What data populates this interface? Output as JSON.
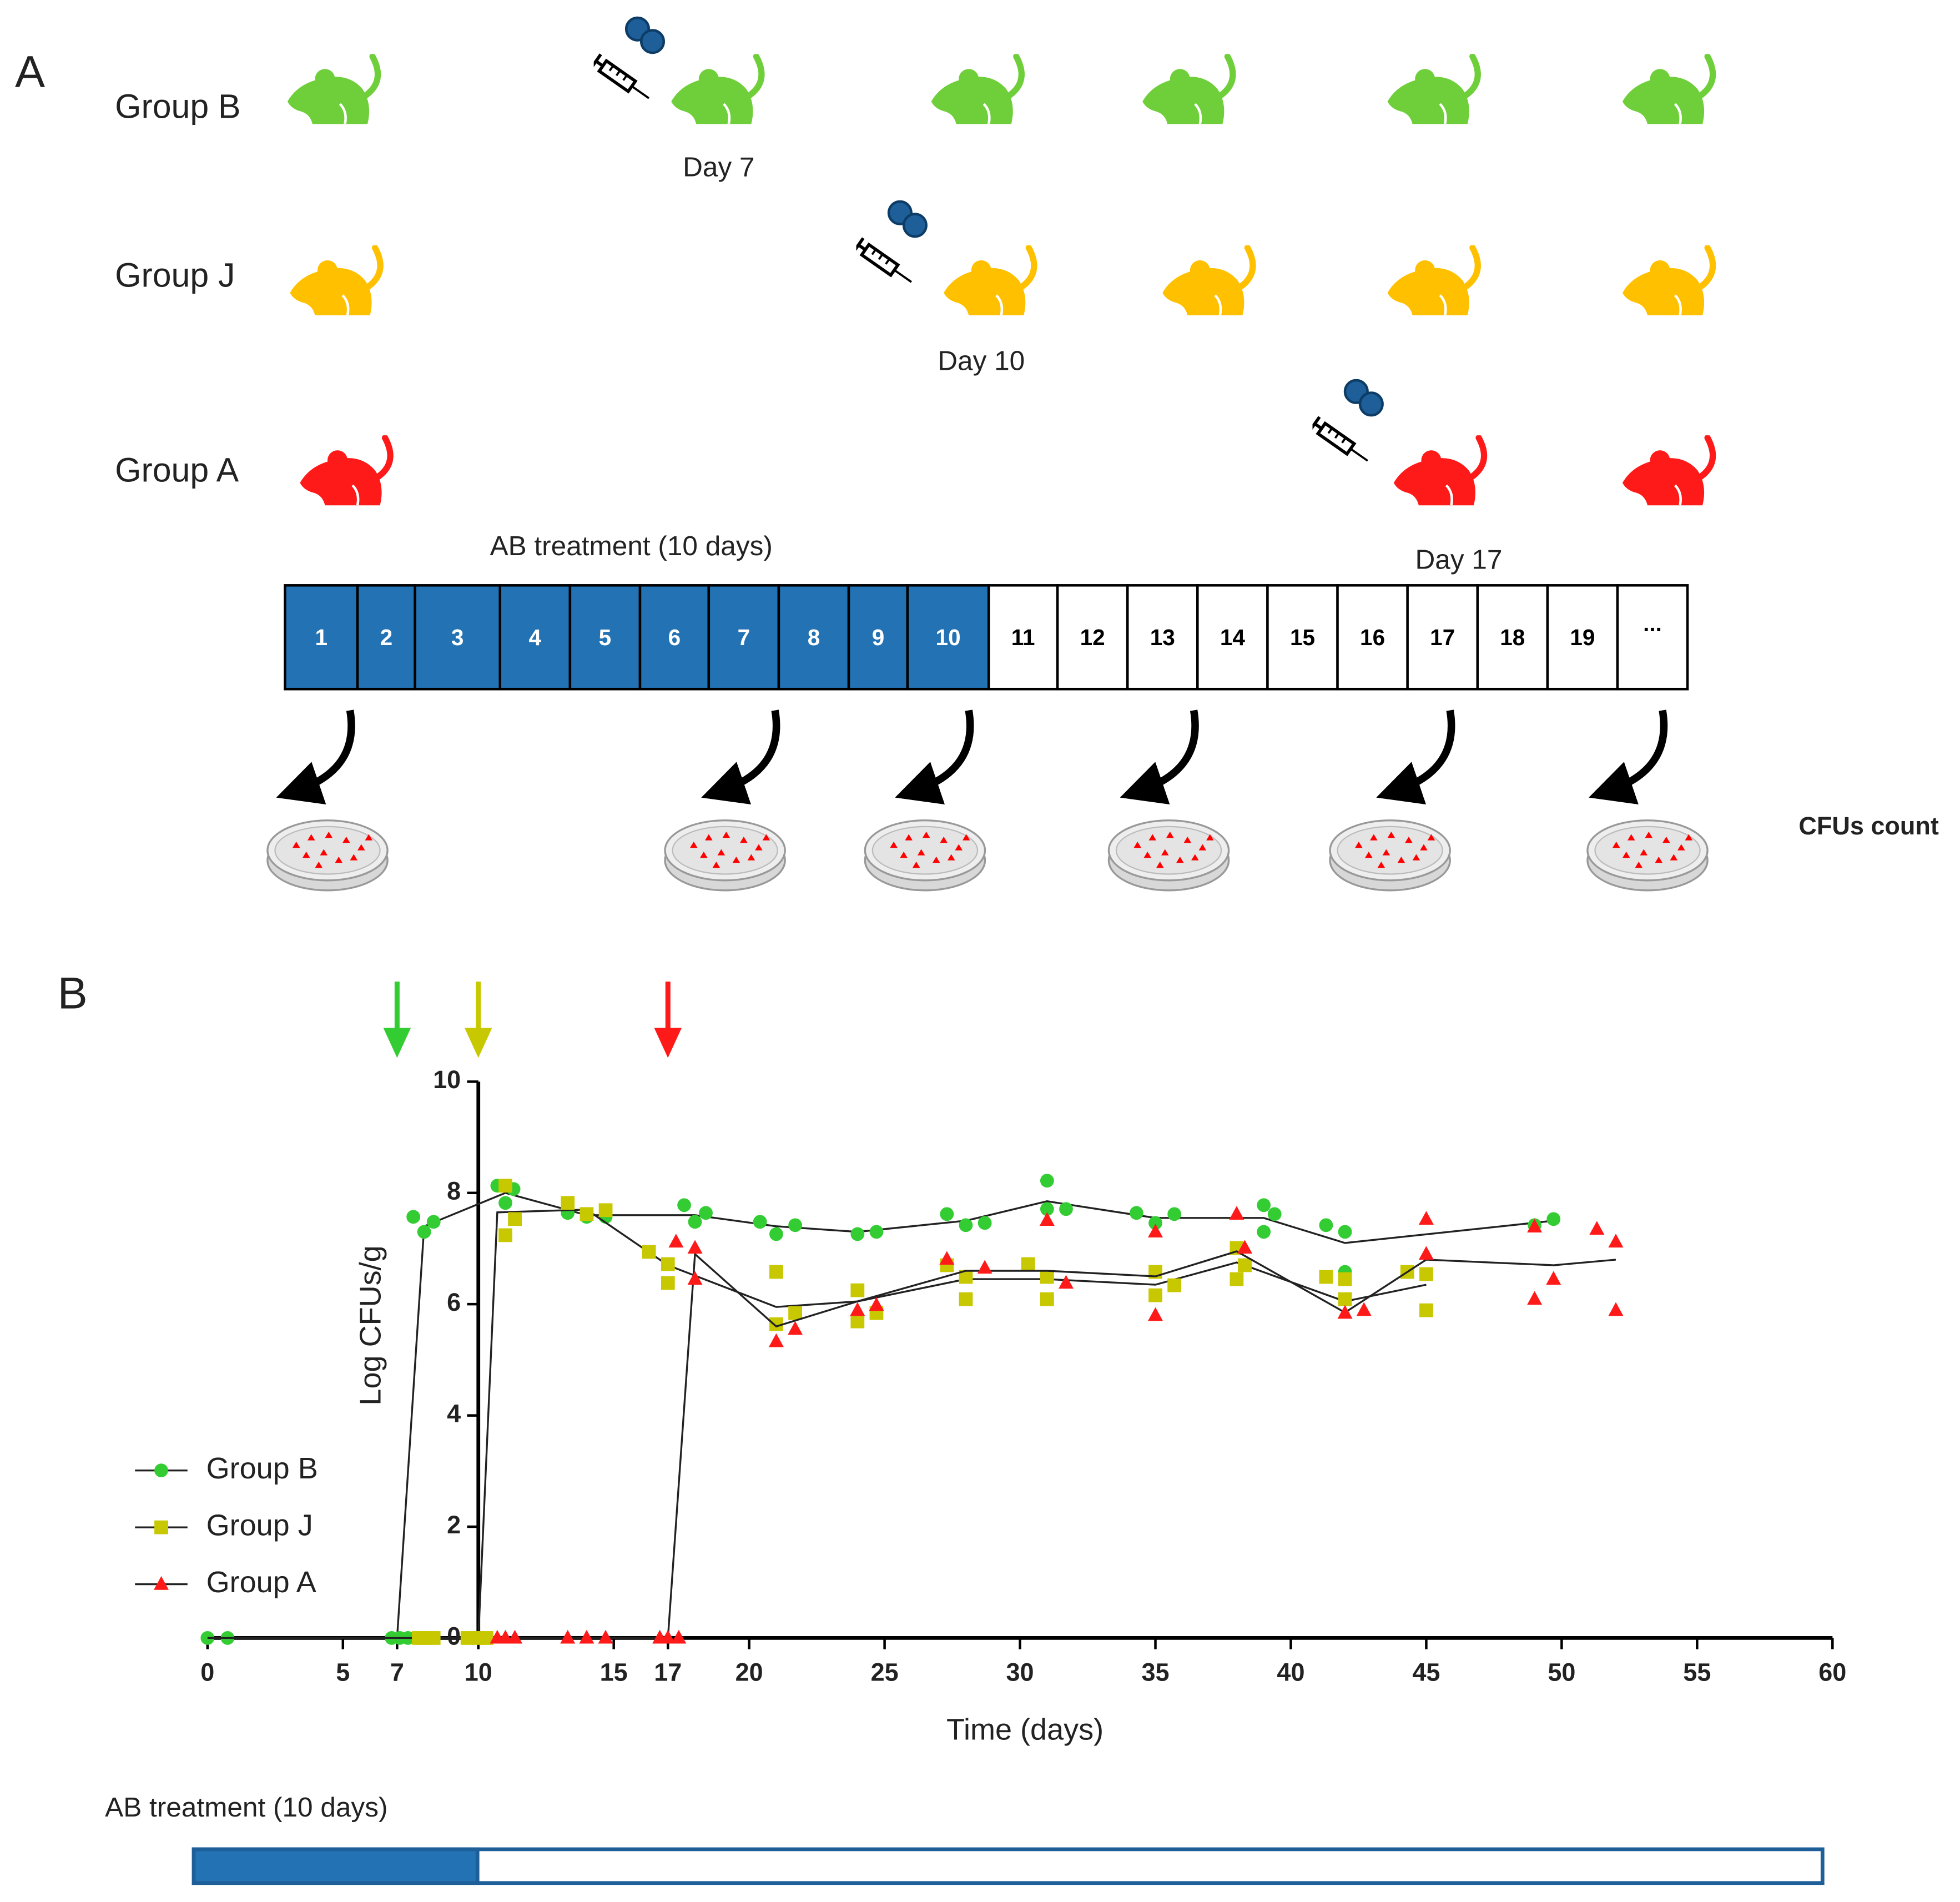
{
  "panel_a": {
    "label": "A",
    "groups": [
      {
        "name": "Group B",
        "color": "#6fcf3a"
      },
      {
        "name": "Group J",
        "color": "#ffc000"
      },
      {
        "name": "Group A",
        "color": "#ff1a1a"
      }
    ],
    "day_labels": [
      "Day 7",
      "Day 10",
      "Day 17"
    ],
    "treatment_label": "AB treatment (10 days)",
    "timeline_days": [
      "1",
      "2",
      "3",
      "4",
      "5",
      "6",
      "7",
      "8",
      "9",
      "10",
      "11",
      "12",
      "13",
      "14",
      "15",
      "16",
      "17",
      "18",
      "19",
      "..."
    ],
    "treated_color": "#2272b4",
    "cfu_label": "CFUs count"
  },
  "panel_b": {
    "label": "B",
    "treatment_label": "AB treatment (10 days)"
  },
  "chart_data": {
    "type": "scatter",
    "xlabel": "Time (days)",
    "ylabel": "Log CFUs/g",
    "xlim": [
      0,
      60
    ],
    "ylim": [
      0,
      10
    ],
    "xticks": [
      0,
      5,
      7,
      10,
      15,
      17,
      20,
      25,
      30,
      35,
      40,
      45,
      50,
      55,
      60
    ],
    "yticks": [
      0,
      2,
      4,
      6,
      8,
      10
    ],
    "y_axis_at": 10,
    "series": [
      {
        "name": "Group B",
        "color": "#33cc33",
        "marker": "circle",
        "infection_day": 7,
        "x": [
          0,
          0.74,
          6.8,
          7.1,
          7.4,
          7.6,
          8.0,
          8.35,
          10.7,
          11.0,
          11.3,
          13.3,
          14.0,
          14.7,
          17.6,
          18.0,
          18.4,
          20.4,
          21.0,
          21.7,
          24.0,
          24.7,
          27.3,
          28.0,
          28.7,
          31.0,
          31.0,
          31.7,
          34.3,
          35.0,
          35.7,
          39.0,
          39.0,
          39.4,
          41.3,
          42.0,
          42.0,
          49.0,
          49.7
        ],
        "values": [
          0,
          0,
          0,
          0,
          0,
          7.57,
          7.3,
          7.48,
          8.13,
          7.82,
          8.07,
          7.64,
          7.57,
          7.57,
          7.78,
          7.48,
          7.64,
          7.48,
          7.26,
          7.42,
          7.26,
          7.3,
          7.62,
          7.42,
          7.46,
          8.22,
          7.71,
          7.71,
          7.64,
          7.46,
          7.62,
          7.78,
          7.3,
          7.62,
          7.42,
          7.3,
          6.58,
          7.42,
          7.53
        ],
        "mean_x": [
          0,
          7,
          8,
          11,
          14,
          18,
          21,
          24,
          28,
          31,
          35,
          39,
          42,
          49.7
        ],
        "mean_values": [
          0,
          0,
          7.4,
          8.0,
          7.6,
          7.6,
          7.4,
          7.3,
          7.5,
          7.85,
          7.55,
          7.55,
          7.1,
          7.5
        ]
      },
      {
        "name": "Group J",
        "color": "#c8c800",
        "marker": "square",
        "infection_day": 10,
        "x": [
          7.8,
          8.0,
          8.35,
          9.6,
          10.0,
          10.3,
          11.0,
          11.0,
          11.35,
          13.3,
          14.0,
          14.7,
          16.3,
          17.0,
          17.0,
          21.0,
          21.0,
          21.7,
          24.0,
          24.0,
          24.7,
          27.3,
          28.0,
          28.0,
          30.3,
          31.0,
          31.0,
          35.0,
          35.0,
          35.7,
          38.0,
          38.0,
          38.3,
          41.3,
          42.0,
          42.0,
          44.3,
          45.0,
          45.0
        ],
        "values": [
          0,
          0,
          0,
          0,
          0,
          0,
          8.13,
          7.24,
          7.53,
          7.82,
          7.62,
          7.69,
          6.94,
          6.72,
          6.38,
          6.58,
          5.64,
          5.84,
          6.25,
          5.69,
          5.84,
          6.7,
          6.49,
          6.09,
          6.72,
          6.49,
          6.09,
          6.58,
          6.16,
          6.34,
          7.01,
          6.45,
          6.7,
          6.49,
          6.45,
          6.09,
          6.58,
          6.54,
          5.89
        ],
        "mean_x": [
          0,
          10,
          10.7,
          14,
          17,
          21,
          24,
          28,
          31,
          35,
          38,
          42,
          45
        ],
        "mean_values": [
          0,
          0,
          7.65,
          7.7,
          6.7,
          5.95,
          6.05,
          6.45,
          6.45,
          6.35,
          6.75,
          6.05,
          6.35
        ]
      },
      {
        "name": "Group A",
        "color": "#ff1a1a",
        "marker": "triangle",
        "infection_day": 17,
        "x": [
          10.7,
          11.0,
          11.35,
          13.3,
          14.0,
          14.7,
          16.7,
          17.0,
          17.4,
          17.3,
          18.0,
          18.0,
          21.0,
          21.7,
          24.0,
          24.7,
          27.3,
          28.7,
          31.0,
          31.7,
          35.0,
          35.0,
          38.0,
          38.3,
          42.0,
          42.7,
          45.0,
          45.0,
          49.0,
          49.0,
          49.7,
          51.3,
          52.0,
          52.0
        ],
        "values": [
          0,
          0,
          0,
          0,
          0,
          0,
          0,
          0,
          0,
          7.12,
          7.01,
          6.45,
          5.33,
          5.55,
          5.89,
          5.98,
          6.81,
          6.65,
          7.51,
          6.38,
          7.3,
          5.8,
          7.62,
          7.01,
          5.84,
          5.89,
          7.53,
          6.9,
          7.39,
          6.09,
          6.45,
          7.35,
          7.12,
          5.89
        ],
        "mean_x": [
          10.7,
          17,
          18,
          21,
          24,
          28,
          31,
          35,
          38,
          42,
          45,
          49.7,
          52
        ],
        "mean_values": [
          0,
          0,
          6.9,
          5.6,
          6.05,
          6.6,
          6.6,
          6.5,
          6.95,
          5.85,
          6.8,
          6.7,
          6.8
        ]
      }
    ]
  }
}
